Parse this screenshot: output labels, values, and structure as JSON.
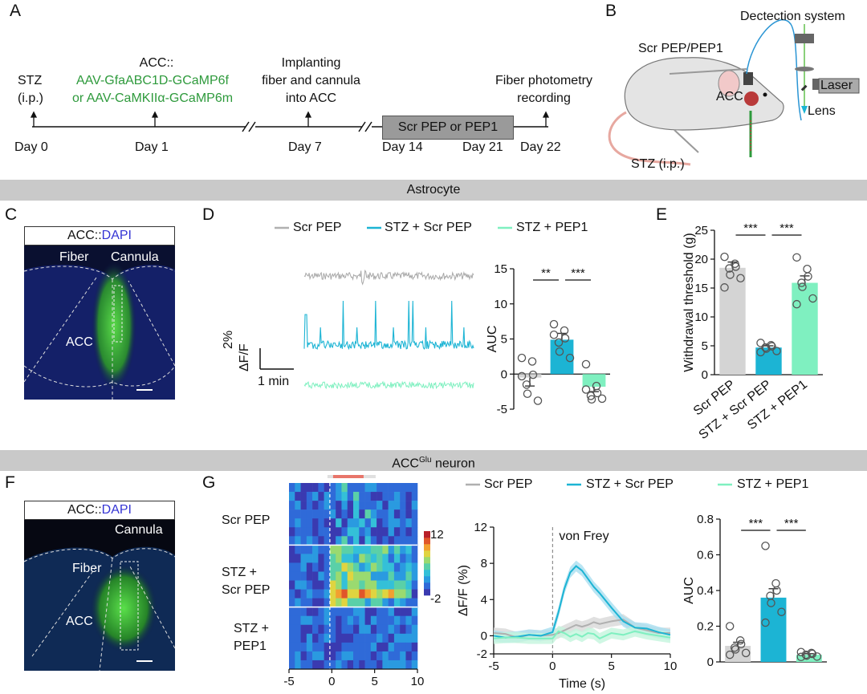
{
  "panels": {
    "A": "A",
    "B": "B",
    "C": "C",
    "D": "D",
    "E": "E",
    "F": "F",
    "G": "G"
  },
  "colors": {
    "scr_pep": "#b0b0b0",
    "stz_scr": "#1cb4d4",
    "stz_pep1": "#7ff0c0",
    "gray_box": "#9a9a9a",
    "band": "#c9c9c9",
    "green_text": "#2e9a3c"
  },
  "timeline": {
    "stz": "STZ",
    "stz_route": "(i.p.)",
    "acc_head": "ACC::",
    "virus1": "AAV-GfaABC1D-GCaMP6f",
    "virus2": "or AAV-CaMKIIα-GCaMP6m",
    "implant1": "Implanting",
    "implant2": "fiber and cannula",
    "implant3": "into ACC",
    "treatment": "Scr PEP or PEP1",
    "photometry1": "Fiber photometry",
    "photometry2": "recording",
    "days": [
      "Day 0",
      "Day 1",
      "Day 7",
      "Day 14",
      "Day 21",
      "Day 22"
    ]
  },
  "schematic": {
    "detection": "Dectection system",
    "injection": "Scr PEP/PEP1",
    "acc": "ACC",
    "laser": "Laser",
    "lens": "Lens",
    "stz": "STZ (i.p.)"
  },
  "sections": {
    "astrocyte": "Astrocyte",
    "neuron_base": "ACC",
    "neuron_sup": "Glu",
    "neuron_tail": " neuron"
  },
  "histology_c": {
    "title_prefix": "ACC::",
    "title_dapi": "DAPI",
    "fiber": "Fiber",
    "cannula": "Cannula",
    "region": "ACC"
  },
  "histology_f": {
    "title_prefix": "ACC::",
    "title_dapi": "DAPI",
    "fiber": "Fiber",
    "cannula": "Cannula",
    "region": "ACC"
  },
  "legend": [
    "Scr PEP",
    "STZ + Scr PEP",
    "STZ + PEP1"
  ],
  "scalebar": {
    "y_label1": "2%",
    "y_label2": "ΔF/F",
    "x_label": "1 min"
  },
  "heatmap": {
    "rows": [
      "Scr PEP",
      "STZ +",
      "Scr PEP",
      "STZ +",
      "PEP1"
    ],
    "colorbar_max": "12",
    "colorbar_min": "-2"
  },
  "chart_data": [
    {
      "id": "D-auc",
      "type": "bar",
      "title": "",
      "ylabel": "AUC",
      "categories": [
        "Scr PEP",
        "STZ + Scr PEP",
        "STZ + PEP1"
      ],
      "values": [
        -0.5,
        4.9,
        -1.8
      ],
      "errors": [
        1.2,
        0.9,
        0.7
      ],
      "points": [
        [
          2.3,
          1.8,
          -0.1,
          -1.5,
          -2.8,
          -3.8,
          -0.3
        ],
        [
          7.1,
          6.2,
          5.1,
          4.5,
          3.2,
          2.3,
          5.6
        ],
        [
          1.4,
          -1.7,
          -2.7,
          -3.1,
          -3.6,
          -3.5,
          -2.2
        ]
      ],
      "ylim": [
        -5,
        15
      ],
      "yticks": [
        -5,
        0,
        5,
        10,
        15
      ],
      "significance": [
        "**",
        "***"
      ]
    },
    {
      "id": "E-threshold",
      "type": "bar",
      "title": "",
      "ylabel": "Withdrawal threshold (g)",
      "categories": [
        "Scr PEP",
        "STZ + Scr PEP",
        "STZ + PEP1"
      ],
      "values": [
        18.5,
        4.7,
        15.9
      ],
      "errors": [
        1.0,
        0.3,
        1.2
      ],
      "points": [
        [
          20.4,
          19.2,
          18.7,
          18.4,
          17.3,
          16.7,
          15.1
        ],
        [
          5.5,
          5.1,
          4.9,
          4.7,
          4.5,
          4.1,
          3.9
        ],
        [
          20.3,
          18.3,
          17.0,
          15.9,
          15.2,
          13.2,
          12.2
        ]
      ],
      "ylim": [
        0,
        25
      ],
      "yticks": [
        0,
        5,
        10,
        15,
        20,
        25
      ],
      "significance": [
        "***",
        "***"
      ]
    },
    {
      "id": "G-trace",
      "type": "line",
      "title": "",
      "xlabel": "Time (s)",
      "ylabel": "ΔF/F (%)",
      "annotation": "von Frey",
      "xlim": [
        -5,
        10
      ],
      "ylim": [
        -2,
        12
      ],
      "xticks": [
        -5,
        0,
        5,
        10
      ],
      "yticks": [
        -2,
        0,
        4,
        8,
        12
      ],
      "x": [
        -5,
        -4,
        -3,
        -2,
        -1,
        0,
        0.5,
        1,
        1.5,
        2,
        2.5,
        3,
        3.5,
        4,
        5,
        6,
        7,
        8,
        9,
        10
      ],
      "series": [
        {
          "name": "Scr PEP",
          "values": [
            0.3,
            0.2,
            -0.2,
            0.1,
            0.0,
            0.1,
            0.3,
            0.6,
            0.9,
            1.2,
            1.0,
            1.2,
            1.5,
            1.3,
            1.6,
            1.8,
            0.9,
            0.6,
            0.3,
            0.3
          ]
        },
        {
          "name": "STZ + Scr PEP",
          "values": [
            0.0,
            -0.2,
            -0.1,
            0.1,
            0.0,
            0.4,
            2.6,
            5.2,
            7.0,
            7.7,
            7.2,
            6.3,
            5.4,
            4.7,
            3.1,
            1.6,
            0.9,
            0.8,
            0.4,
            0.1
          ]
        },
        {
          "name": "STZ + PEP1",
          "values": [
            -0.3,
            -0.2,
            -0.2,
            -0.3,
            -0.3,
            -0.3,
            0.5,
            0.3,
            -0.1,
            0.2,
            -0.1,
            0.3,
            0.2,
            -0.3,
            0.3,
            0.1,
            0.5,
            0.2,
            0.0,
            -0.2
          ]
        }
      ]
    },
    {
      "id": "G-auc",
      "type": "bar",
      "title": "",
      "ylabel": "AUC",
      "categories": [
        "Scr PEP",
        "STZ + Scr PEP",
        "STZ + PEP1"
      ],
      "values": [
        0.09,
        0.36,
        0.04
      ],
      "errors": [
        0.02,
        0.05,
        0.006
      ],
      "points": [
        [
          0.2,
          0.12,
          0.1,
          0.08,
          0.07,
          0.05,
          0.04
        ],
        [
          0.65,
          0.44,
          0.4,
          0.37,
          0.33,
          0.28,
          0.22
        ],
        [
          0.055,
          0.05,
          0.045,
          0.04,
          0.035,
          0.03,
          0.028
        ]
      ],
      "ylim": [
        0,
        0.8
      ],
      "yticks": [
        0,
        0.2,
        0.4,
        0.6,
        0.8
      ],
      "significance": [
        "***",
        "***"
      ]
    },
    {
      "id": "G-heatmap",
      "type": "heatmap",
      "xlim": [
        -5,
        10
      ],
      "xticks": [
        -5,
        0,
        5,
        10
      ],
      "colorbar": [
        -2,
        12
      ],
      "groups": [
        "Scr PEP",
        "STZ + Scr PEP",
        "STZ + PEP1"
      ]
    }
  ]
}
